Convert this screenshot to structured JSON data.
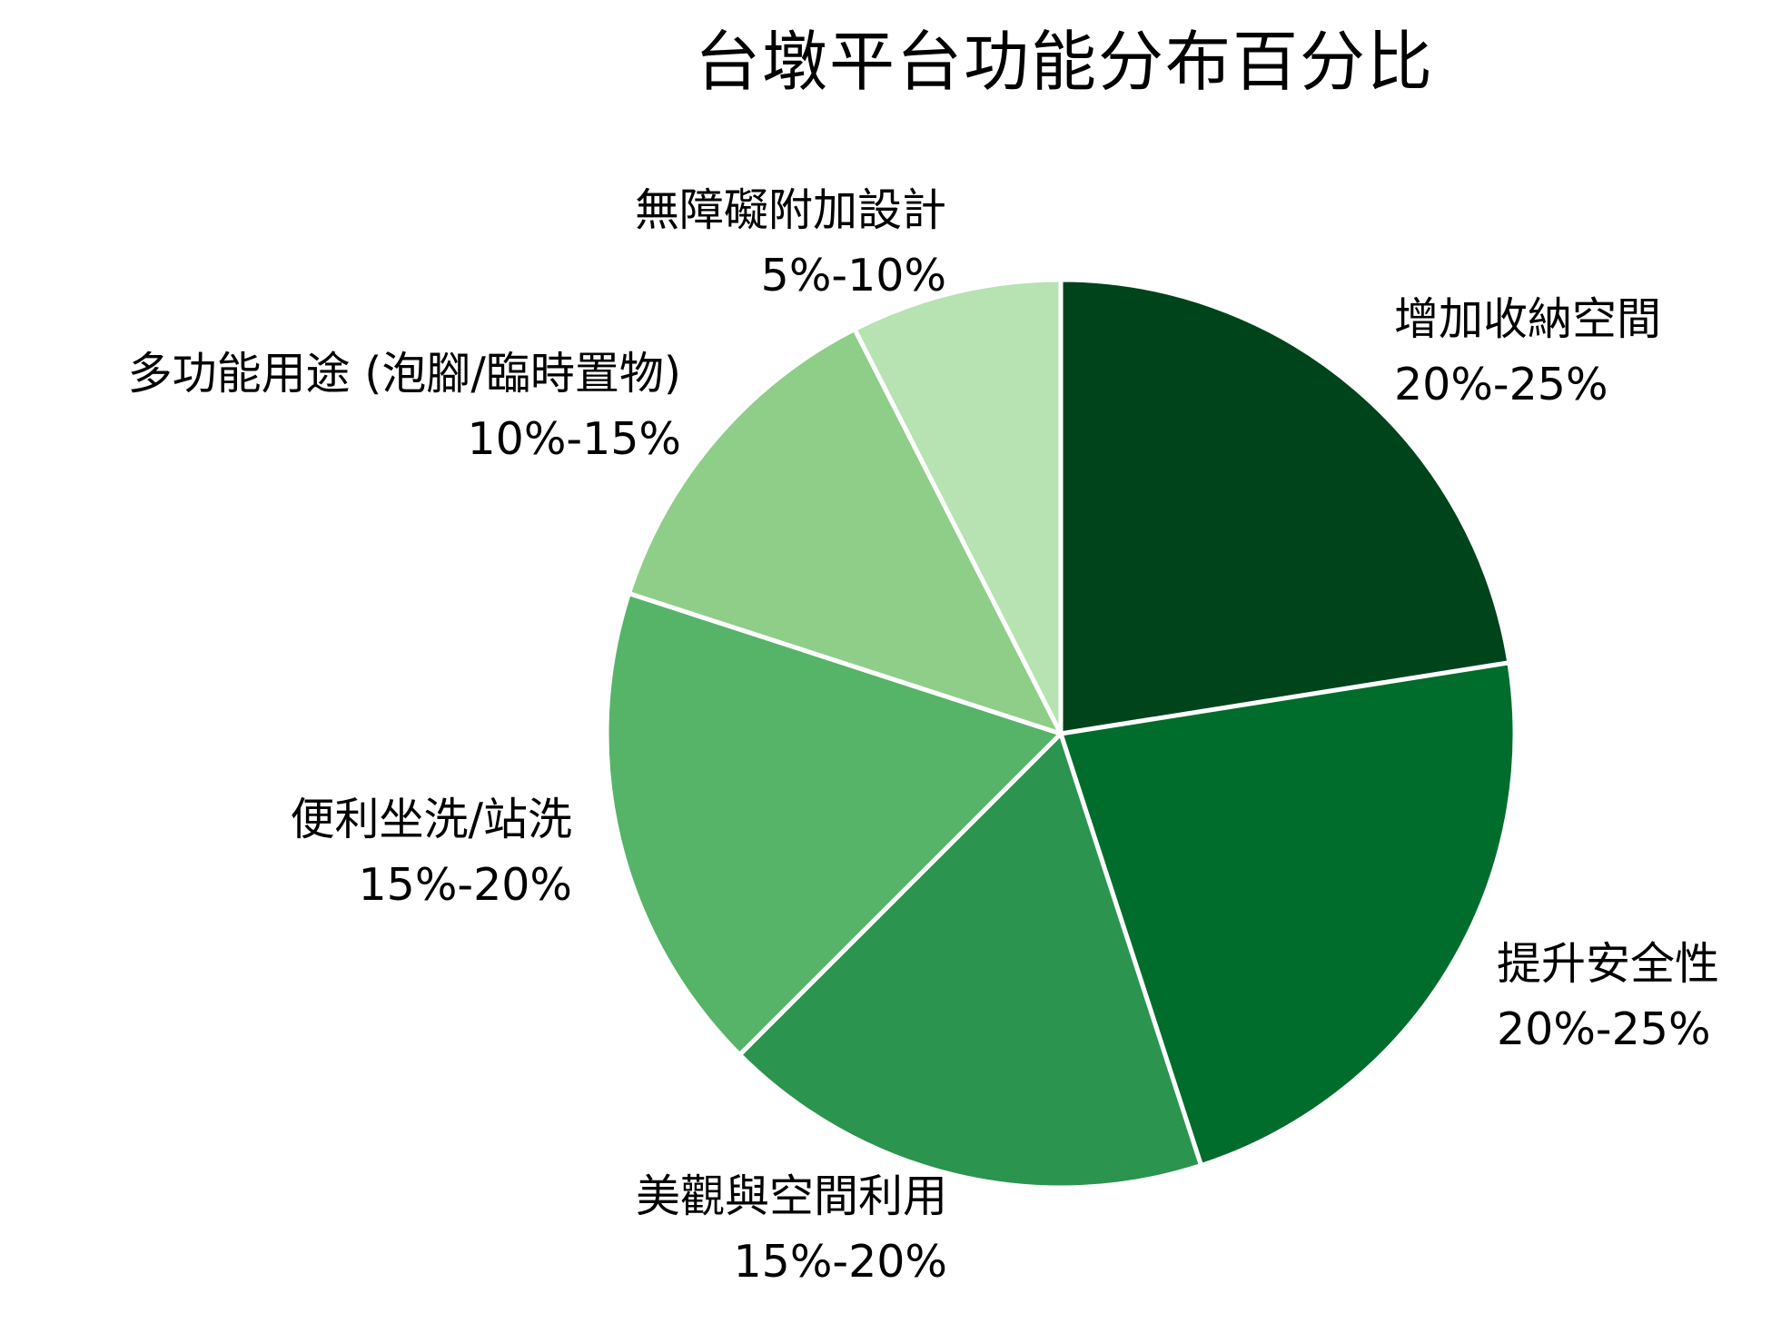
{
  "chart_data": {
    "type": "pie",
    "title": "台墩平台功能分布百分比",
    "start_angle": "12 o'clock, clockwise",
    "categories": [
      "增加收納空間",
      "提升安全性",
      "美觀與空間利用",
      "便利坐洗/站洗",
      "多功能用途 (泡腳/臨時置物)",
      "無障礙附加設計"
    ],
    "values": [
      22.5,
      22.5,
      17.5,
      17.5,
      12.5,
      7.5
    ],
    "value_labels": [
      "20%-25%",
      "20%-25%",
      "15%-20%",
      "15%-20%",
      "10%-15%",
      "5%-10%"
    ],
    "colors": [
      "#00441b",
      "#006d2c",
      "#2b944f",
      "#55b467",
      "#8ece88",
      "#b7e2b2"
    ],
    "legend": "none (direct labels)"
  },
  "title": "台墩平台功能分布百分比",
  "labels": [
    {
      "name": "增加收納空間",
      "range": "20%-25%"
    },
    {
      "name": "提升安全性",
      "range": "20%-25%"
    },
    {
      "name": "美觀與空間利用",
      "range": "15%-20%"
    },
    {
      "name": "便利坐洗/站洗",
      "range": "15%-20%"
    },
    {
      "name": "多功能用途 (泡腳/臨時置物)",
      "range": "10%-15%"
    },
    {
      "name": "無障礙附加設計",
      "range": "5%-10%"
    }
  ]
}
